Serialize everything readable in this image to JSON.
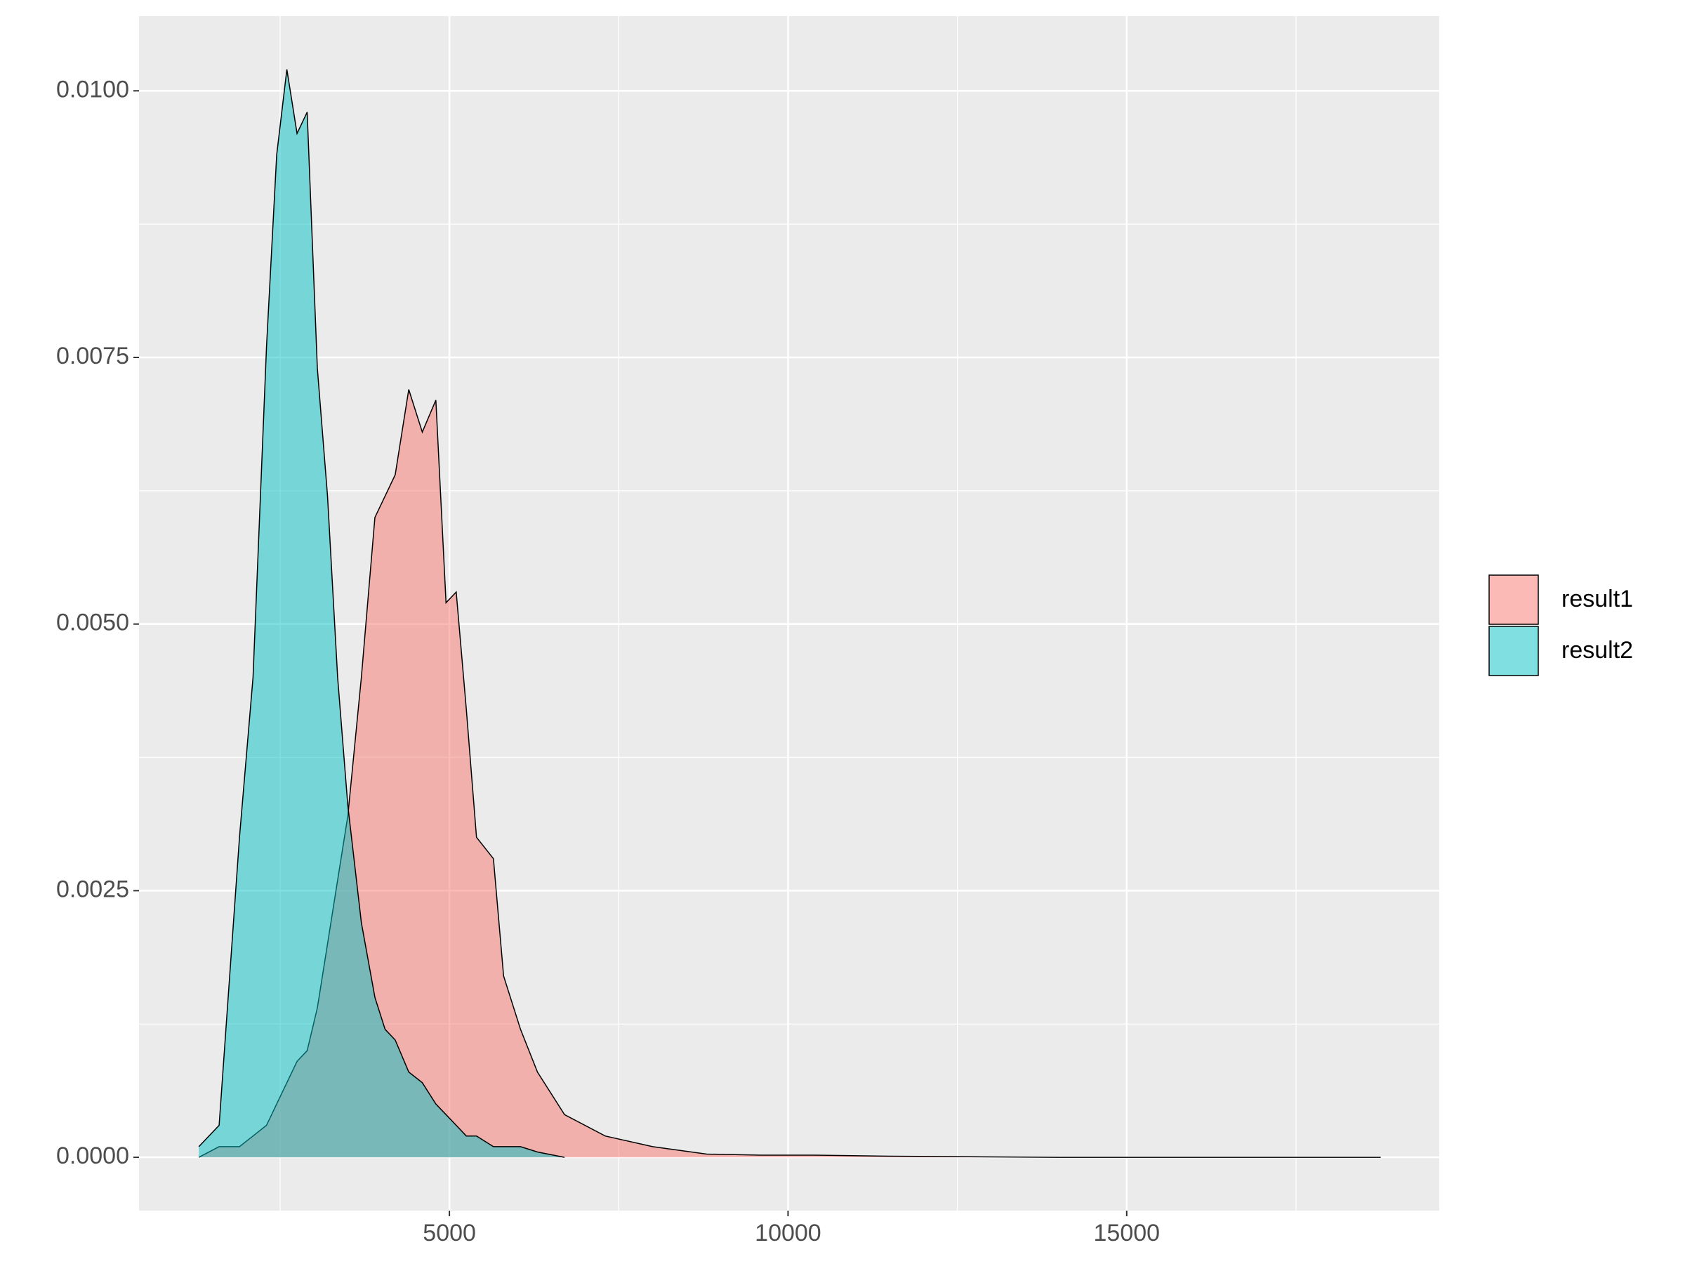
{
  "chart_data": {
    "type": "area",
    "x": [
      1300,
      1600,
      1900,
      2100,
      2300,
      2450,
      2600,
      2750,
      2900,
      3050,
      3200,
      3350,
      3500,
      3700,
      3900,
      4050,
      4200,
      4400,
      4600,
      4800,
      4950,
      5100,
      5250,
      5400,
      5650,
      5800,
      6050,
      6300,
      6700,
      7300,
      8000,
      8800,
      9600,
      10400,
      11500,
      14000,
      18750
    ],
    "series": [
      {
        "name": "result1",
        "color": "#F8766D",
        "values": [
          0,
          0.0001,
          0.0001,
          0.0002,
          0.0003,
          0.0005,
          0.0007,
          0.0009,
          0.001,
          0.0014,
          0.002,
          0.0026,
          0.0032,
          0.0045,
          0.006,
          0.0062,
          0.0064,
          0.0072,
          0.0068,
          0.0071,
          0.0052,
          0.0053,
          0.0042,
          0.003,
          0.0028,
          0.0017,
          0.0012,
          0.0008,
          0.0004,
          0.0002,
          0.0001,
          3e-05,
          2e-05,
          2e-05,
          1e-05,
          0,
          0
        ]
      },
      {
        "name": "result2",
        "color": "#00BFC4",
        "values": [
          0.0001,
          0.0003,
          0.003,
          0.0045,
          0.0076,
          0.0094,
          0.0102,
          0.0096,
          0.0098,
          0.0074,
          0.0062,
          0.0045,
          0.0033,
          0.0022,
          0.0015,
          0.0012,
          0.0011,
          0.0008,
          0.0007,
          0.0005,
          0.0004,
          0.0003,
          0.0002,
          0.0002,
          0.0001,
          0.0001,
          0.0001,
          5e-05,
          0,
          null,
          null,
          null,
          null,
          null,
          null,
          null,
          null
        ]
      }
    ],
    "xlim": [
      417,
      19615
    ],
    "xticks": [
      5000,
      10000,
      15000
    ],
    "ylim": [
      -0.0005,
      0.0107
    ],
    "yticks": [
      {
        "value": 0,
        "label": "0.0000"
      },
      {
        "value": 0.0025,
        "label": "0.0025"
      },
      {
        "value": 0.005,
        "label": "0.0050"
      },
      {
        "value": 0.0075,
        "label": "0.0075"
      },
      {
        "value": 0.01,
        "label": "0.0100"
      }
    ],
    "grid": true
  }
}
